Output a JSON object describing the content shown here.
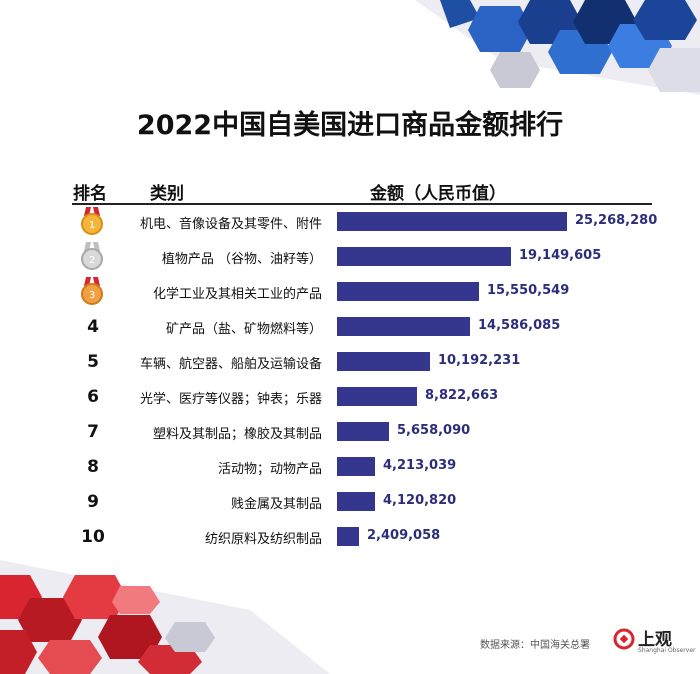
{
  "title": "2022中国自美国进口商品金额排行",
  "header": {
    "rank": "排名",
    "category": "类别",
    "amount": "金额（人民币值）"
  },
  "ranks_text": [
    "4",
    "5",
    "6",
    "7",
    "8",
    "9",
    "10"
  ],
  "medals": [
    "gold-medal-icon",
    "silver-medal-icon",
    "bronze-medal-icon"
  ],
  "colors": {
    "bar": "#35378f",
    "value_text": "#2c2e7a",
    "top_decor": "#1f4fa3",
    "bottom_decor": "#d9252f"
  },
  "chart_data": {
    "type": "bar",
    "orientation": "horizontal",
    "title": "2022中国自美国进口商品金额排行",
    "categories": [
      "机电、音像设备及其零件、附件",
      "植物产品 （谷物、油籽等）",
      "化学工业及其相关工业的产品",
      "矿产品（盐、矿物燃料等）",
      "车辆、航空器、船舶及运输设备",
      "光学、医疗等仪器；钟表；乐器",
      "塑料及其制品；橡胶及其制品",
      "活动物；动物产品",
      "贱金属及其制品",
      "纺织原料及纺织制品"
    ],
    "values": [
      25268280,
      19149605,
      15550549,
      14586085,
      10192231,
      8822663,
      5658090,
      4213039,
      4120820,
      2409058
    ],
    "value_labels": [
      "25,268,280",
      "19,149,605",
      "15,550,549",
      "14,586,085",
      "10,192,231",
      "8,822,663",
      "5,658,090",
      "4,213,039",
      "4,120,820",
      "2,409,058"
    ],
    "grid": false,
    "legend": "none"
  },
  "source": "数据来源：中国海关总署",
  "logo": {
    "text": "上观",
    "subtext": "Shanghai Observer"
  }
}
